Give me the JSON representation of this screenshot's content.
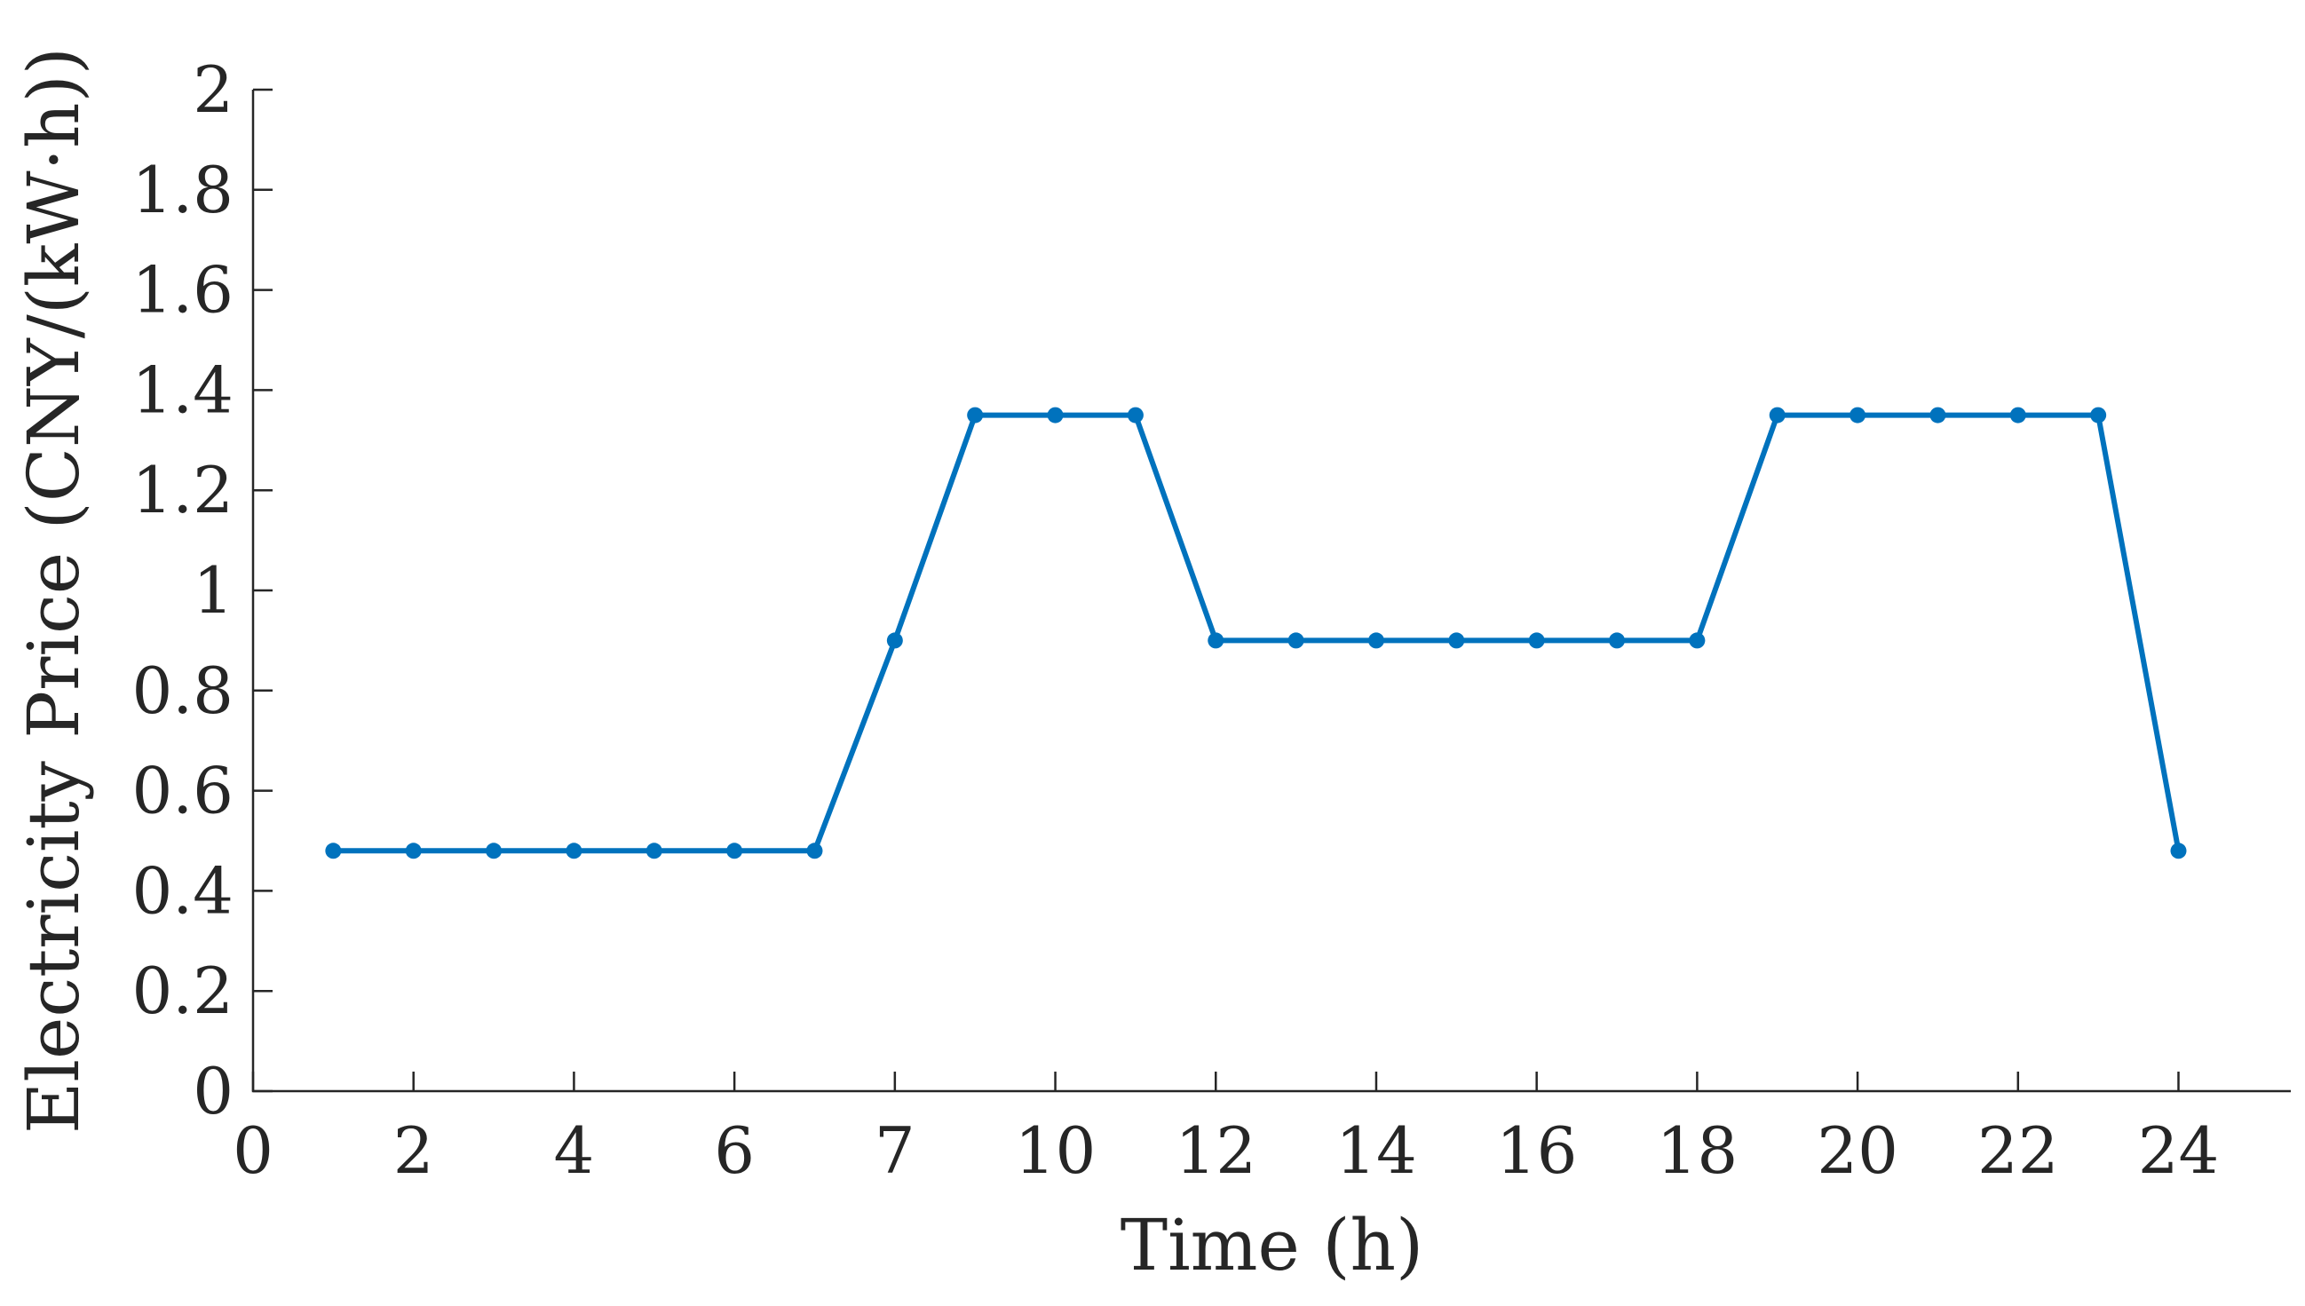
{
  "chart_data": {
    "type": "line",
    "xlabel": "Time (h)",
    "ylabel": "Electricity Price (CNY/(kW·h))",
    "ylim": [
      0,
      2
    ],
    "y_ticks": [
      "0",
      "0.2",
      "0.4",
      "0.6",
      "0.8",
      "1",
      "1.2",
      "1.4",
      "1.6",
      "1.8",
      "2"
    ],
    "x_ticks": [
      "0",
      "2",
      "4",
      "6",
      "7",
      "10",
      "12",
      "14",
      "16",
      "18",
      "20",
      "22",
      "24"
    ],
    "grid": false,
    "legend": "none",
    "series": [
      {
        "color": "#0072BD",
        "points": [
          {
            "x": 1,
            "y": 0.48
          },
          {
            "x": 2,
            "y": 0.48
          },
          {
            "x": 3,
            "y": 0.48
          },
          {
            "x": 4,
            "y": 0.48
          },
          {
            "x": 5,
            "y": 0.48
          },
          {
            "x": 6,
            "y": 0.48
          },
          {
            "x": 7,
            "y": 0.48
          },
          {
            "x": 8,
            "y": 0.9
          },
          {
            "x": 9,
            "y": 1.35
          },
          {
            "x": 10,
            "y": 1.35
          },
          {
            "x": 11,
            "y": 1.35
          },
          {
            "x": 12,
            "y": 0.9
          },
          {
            "x": 13,
            "y": 0.9
          },
          {
            "x": 14,
            "y": 0.9
          },
          {
            "x": 15,
            "y": 0.9
          },
          {
            "x": 16,
            "y": 0.9
          },
          {
            "x": 17,
            "y": 0.9
          },
          {
            "x": 18,
            "y": 0.9
          },
          {
            "x": 19,
            "y": 1.35
          },
          {
            "x": 20,
            "y": 1.35
          },
          {
            "x": 21,
            "y": 1.35
          },
          {
            "x": 22,
            "y": 1.35
          },
          {
            "x": 23,
            "y": 1.35
          },
          {
            "x": 24,
            "y": 0.48
          }
        ]
      }
    ]
  }
}
